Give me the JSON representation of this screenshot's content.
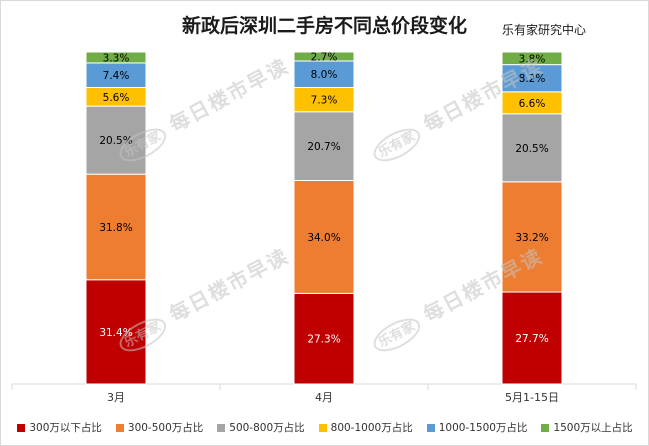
{
  "header": {
    "title": "新政后深圳二手房不同总价段变化",
    "source": "乐有家研究中心"
  },
  "watermark": {
    "logo": "乐有家",
    "text": "每日楼市早读"
  },
  "chart_data": {
    "type": "bar",
    "stacked": true,
    "percent": true,
    "categories": [
      "3月",
      "4月",
      "5月1-15日"
    ],
    "ylim": [
      0,
      100
    ],
    "grid": false,
    "legend_position": "bottom",
    "series": [
      {
        "name": "300万以下占比",
        "color": "#c00000",
        "label_color": "#ffffff",
        "values": [
          31.4,
          27.3,
          27.7
        ],
        "labels": [
          "31.4%",
          "27.3%",
          "27.7%"
        ]
      },
      {
        "name": "300-500万占比",
        "color": "#ed7d31",
        "label_color": "#000000",
        "values": [
          31.8,
          34.0,
          33.2
        ],
        "labels": [
          "31.8%",
          "34.0%",
          "33.2%"
        ]
      },
      {
        "name": "500-800万占比",
        "color": "#a5a5a5",
        "label_color": "#000000",
        "values": [
          20.5,
          20.7,
          20.5
        ],
        "labels": [
          "20.5%",
          "20.7%",
          "20.5%"
        ]
      },
      {
        "name": "800-1000万占比",
        "color": "#ffc000",
        "label_color": "#000000",
        "values": [
          5.6,
          7.3,
          6.6
        ],
        "labels": [
          "5.6%",
          "7.3%",
          "6.6%"
        ]
      },
      {
        "name": "1000-1500万占比",
        "color": "#5b9bd5",
        "label_color": "#000000",
        "values": [
          7.4,
          8.0,
          8.2
        ],
        "labels": [
          "7.4%",
          "8.0%",
          "8.2%"
        ]
      },
      {
        "name": "1500万以上占比",
        "color": "#70ad47",
        "label_color": "#000000",
        "values": [
          3.3,
          2.7,
          3.8
        ],
        "labels": [
          "3.3%",
          "2.7%",
          "3.8%"
        ]
      }
    ]
  }
}
